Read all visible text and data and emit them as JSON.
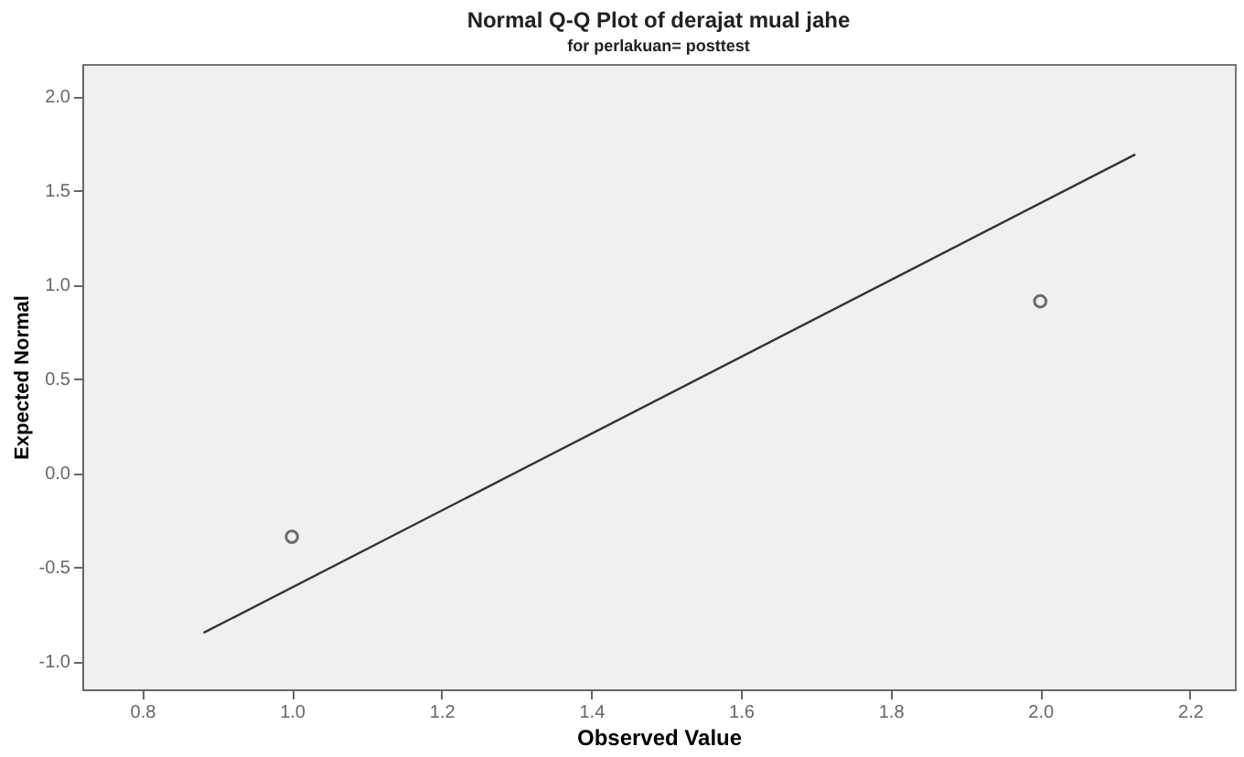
{
  "chart_data": {
    "type": "scatter",
    "title": "Normal Q-Q Plot of derajat mual jahe",
    "subtitle": "for perlakuan= posttest",
    "xlabel": "Observed Value",
    "ylabel": "Expected Normal",
    "series": [
      {
        "x": [
          1.0,
          2.0
        ],
        "values": [
          -0.34,
          0.91
        ],
        "color": "#333333",
        "marker": "circle"
      },
      {
        "type": "line",
        "x": [
          0.882,
          2.127
        ],
        "values": [
          -0.85,
          1.69
        ],
        "color": "#333333",
        "marker": "none"
      }
    ],
    "xlim": [
      0.72,
      2.26
    ],
    "ylim": [
      -1.15,
      2.17
    ],
    "xticks": [
      {
        "value": 0.8,
        "label": "0.8"
      },
      {
        "value": 1.0,
        "label": "1.0"
      },
      {
        "value": 1.2,
        "label": "1.2"
      },
      {
        "value": 1.4,
        "label": "1.4"
      },
      {
        "value": 1.6,
        "label": "1.6"
      },
      {
        "value": 1.8,
        "label": "1.8"
      },
      {
        "value": 2.0,
        "label": "2.0"
      },
      {
        "value": 2.2,
        "label": "2.2"
      }
    ],
    "yticks": [
      {
        "value": -1.0,
        "label": "-1.0"
      },
      {
        "value": -0.5,
        "label": "-0.5"
      },
      {
        "value": 0.0,
        "label": "0.0"
      },
      {
        "value": 0.5,
        "label": "0.5"
      },
      {
        "value": 1.0,
        "label": "1.0"
      },
      {
        "value": 1.5,
        "label": "1.5"
      },
      {
        "value": 2.0,
        "label": "2.0"
      }
    ],
    "grid": false,
    "legend": false
  }
}
